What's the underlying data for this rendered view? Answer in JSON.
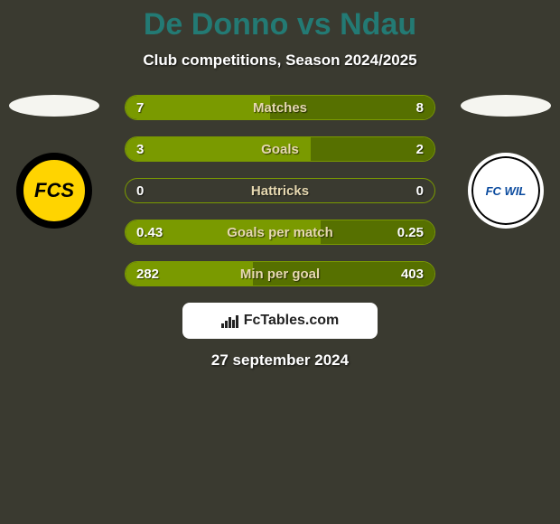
{
  "title": {
    "text": "De Donno vs Ndau",
    "color": "#237a74",
    "fontsize": 34
  },
  "subtitle": {
    "text": "Club competitions, Season 2024/2025",
    "color": "#ffffff",
    "fontsize": 17
  },
  "date": {
    "text": "27 september 2024",
    "color": "#ffffff",
    "fontsize": 17
  },
  "branding": {
    "text": "FcTables.com",
    "bg": "#ffffff",
    "color": "#222222",
    "fontsize": 16
  },
  "players": {
    "left": {
      "avatar_bg": "#f5f5f0",
      "badge_outer": "#000000",
      "badge_inner": "#ffd400",
      "badge_text": "FCS",
      "badge_text_color": "#000000"
    },
    "right": {
      "avatar_bg": "#f5f5f0",
      "badge_outer": "#ffffff",
      "badge_inner": "#ffffff",
      "badge_text": "FC WIL",
      "badge_text_color": "#0a4a9e"
    }
  },
  "stats": {
    "border_color": "#7a9a00",
    "left_fill": "#7a9a00",
    "right_fill": "#567000",
    "value_color": "#ffffff",
    "label_color": "#e6d8b0",
    "value_fontsize": 15,
    "label_fontsize": 15,
    "rows": [
      {
        "label": "Matches",
        "left_val": "7",
        "right_val": "8",
        "left_pct": 46.7,
        "right_pct": 53.3
      },
      {
        "label": "Goals",
        "left_val": "3",
        "right_val": "2",
        "left_pct": 60.0,
        "right_pct": 40.0
      },
      {
        "label": "Hattricks",
        "left_val": "0",
        "right_val": "0",
        "left_pct": 0,
        "right_pct": 0
      },
      {
        "label": "Goals per match",
        "left_val": "0.43",
        "right_val": "0.25",
        "left_pct": 63.2,
        "right_pct": 36.8
      },
      {
        "label": "Min per goal",
        "left_val": "282",
        "right_val": "403",
        "left_pct": 41.2,
        "right_pct": 58.8
      }
    ]
  }
}
